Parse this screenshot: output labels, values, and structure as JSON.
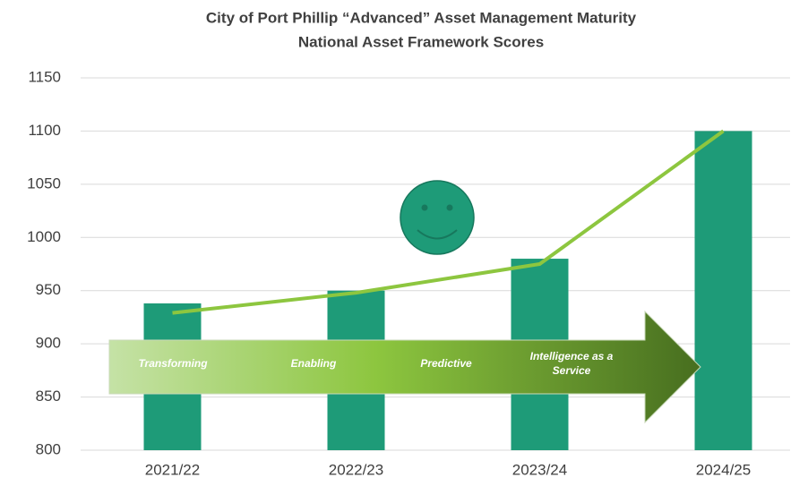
{
  "chart_data": {
    "type": "bar",
    "title": "City of Port Phillip “Advanced” Asset Management Maturity",
    "subtitle": "National Asset Framework Scores",
    "categories": [
      "2021/22",
      "2022/23",
      "2023/24",
      "2024/25"
    ],
    "series": [
      {
        "type": "bar",
        "color": "#1e9b78",
        "values": [
          938,
          950,
          980,
          1100
        ]
      },
      {
        "type": "line",
        "color": "#8dc63f",
        "values": [
          929,
          948,
          975,
          1100
        ]
      }
    ],
    "ylim": [
      800,
      1150
    ],
    "yticks": [
      800,
      850,
      900,
      950,
      1000,
      1050,
      1100,
      1150
    ],
    "grid": true,
    "annotations": [
      "Transforming",
      "Enabling",
      "Predictive",
      "Intelligence as a\nService"
    ]
  }
}
